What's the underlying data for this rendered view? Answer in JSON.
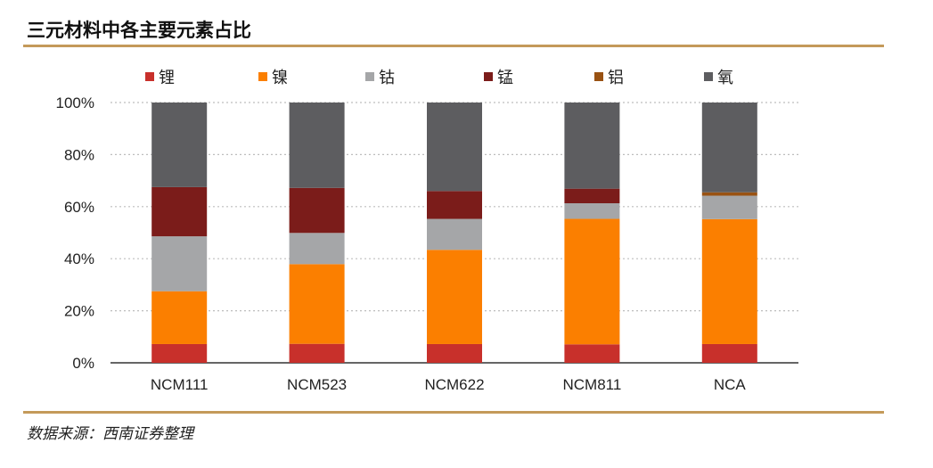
{
  "header": {
    "title": "三元材料中各主要元素占比"
  },
  "footer": {
    "source": "数据来源：西南证券整理"
  },
  "chart_data": {
    "type": "bar",
    "stacked": true,
    "title": "三元材料中各主要元素占比",
    "xlabel": "",
    "ylabel": "",
    "ylim": [
      0,
      100
    ],
    "yticks": [
      "0%",
      "20%",
      "40%",
      "60%",
      "80%",
      "100%"
    ],
    "grid": "horizontal dotted",
    "legend_position": "top",
    "categories": [
      "NCM111",
      "NCM523",
      "NCM622",
      "NCM811",
      "NCA"
    ],
    "series": [
      {
        "name": "锂",
        "color": "#c8302b",
        "values": [
          7.2,
          7.3,
          7.2,
          7.1,
          7.2
        ]
      },
      {
        "name": "镍",
        "color": "#fb7f00",
        "values": [
          20.3,
          30.6,
          36.2,
          48.2,
          48.0
        ]
      },
      {
        "name": "钴",
        "color": "#a5a6a8",
        "values": [
          21.1,
          12.0,
          11.9,
          6.0,
          9.0
        ]
      },
      {
        "name": "锰",
        "color": "#7b1c1a",
        "values": [
          18.9,
          17.3,
          10.7,
          5.6,
          0.0
        ]
      },
      {
        "name": "铝",
        "color": "#995213",
        "values": [
          0.0,
          0.0,
          0.0,
          0.0,
          1.3
        ]
      },
      {
        "name": "氧",
        "color": "#5d5d60",
        "values": [
          32.5,
          32.8,
          34.0,
          33.1,
          34.5
        ]
      }
    ]
  }
}
